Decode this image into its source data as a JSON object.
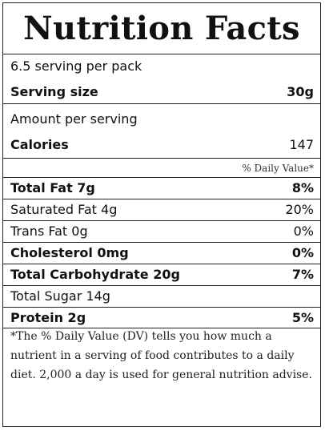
{
  "title": "Nutrition Facts",
  "servings": {
    "per_pack": "6.5 serving per pack",
    "size_label": "Serving size",
    "size_value": "30g"
  },
  "amount_per_serving": "Amount per serving",
  "calories": {
    "label": "Calories",
    "value": "147"
  },
  "daily_value_header": "% Daily Value*",
  "nutrients": [
    {
      "name": "Total Fat 7g",
      "dv": "8%",
      "bold": true
    },
    {
      "name": "Saturated Fat 4g",
      "dv": "20%",
      "bold": false
    },
    {
      "name": "Trans Fat 0g",
      "dv": "0%",
      "bold": false
    },
    {
      "name": "Cholesterol 0mg",
      "dv": "0%",
      "bold": true
    },
    {
      "name": "Total Carbohydrate 20g",
      "dv": "7%",
      "bold": true
    },
    {
      "name": "Total Sugar 14g",
      "dv": "",
      "bold": false
    },
    {
      "name": "Protein 2g",
      "dv": "5%",
      "bold": true
    }
  ],
  "footnote": "*The % Daily Value (DV) tells you how much a nutrient in a serving of food contributes to a daily diet. 2,000 a day is used for general nutrition advise."
}
